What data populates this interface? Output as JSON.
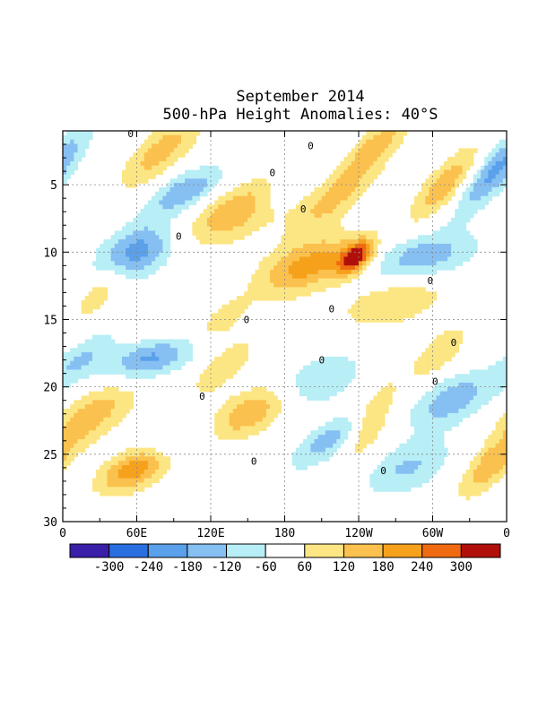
{
  "chart_data": {
    "type": "heatmap",
    "title": "September 2014",
    "subtitle": "500-hPa Height Anomalies: 40°S",
    "x_tick_labels": [
      "0",
      "60E",
      "120E",
      "180",
      "120W",
      "60W",
      "0"
    ],
    "x_tick_positions_deg_east": [
      0,
      60,
      120,
      180,
      240,
      300,
      360
    ],
    "xlim_deg_east": [
      0,
      360
    ],
    "y_tick_labels": [
      "5",
      "10",
      "15",
      "20",
      "25",
      "30"
    ],
    "y_tick_values": [
      5,
      10,
      15,
      20,
      25,
      30
    ],
    "ylim": [
      1,
      30
    ],
    "y_reversed": true,
    "grid": "dotted",
    "contour_label": "0",
    "colorbar": {
      "placement": "bottom",
      "labels": [
        "-300",
        "-240",
        "-180",
        "-120",
        "-60",
        "60",
        "120",
        "180",
        "240",
        "300"
      ],
      "colors": [
        "#3a1fa8",
        "#2a6fe0",
        "#5aa0ea",
        "#86bff2",
        "#b8eef6",
        "#ffffff",
        "#fce684",
        "#fbc14e",
        "#f6a11c",
        "#f06a12",
        "#b00f0a"
      ]
    },
    "anomaly_features": [
      {
        "lon": 80,
        "day": 2.5,
        "value": 150,
        "spread_lon": 16,
        "spread_day": 2.0,
        "tilt": 9.0
      },
      {
        "lon": 140,
        "day": 7.0,
        "value": 170,
        "spread_lon": 25,
        "spread_day": 1.8,
        "tilt": 10.0
      },
      {
        "lon": 200,
        "day": 11.0,
        "value": 210,
        "spread_lon": 25,
        "spread_day": 1.6,
        "tilt": 10.5
      },
      {
        "lon": 238,
        "day": 10.4,
        "value": 320,
        "spread_lon": 9,
        "spread_day": 0.9,
        "tilt": 6.0
      },
      {
        "lon": 220,
        "day": 6.0,
        "value": 140,
        "spread_lon": 16,
        "spread_day": 2.0,
        "tilt": 10.0
      },
      {
        "lon": 255,
        "day": 2.0,
        "value": 150,
        "spread_lon": 12,
        "spread_day": 1.5,
        "tilt": 9.0
      },
      {
        "lon": 270,
        "day": 13.5,
        "value": 130,
        "spread_lon": 28,
        "spread_day": 1.5,
        "tilt": 9.0
      },
      {
        "lon": 160,
        "day": 21.5,
        "value": 240,
        "spread_lon": 22,
        "spread_day": 1.6,
        "tilt": 11.0
      },
      {
        "lon": 130,
        "day": 18.5,
        "value": 120,
        "spread_lon": 12,
        "spread_day": 1.5,
        "tilt": 9.0
      },
      {
        "lon": 60,
        "day": 26.0,
        "value": 240,
        "spread_lon": 18,
        "spread_day": 1.3,
        "tilt": 9.0
      },
      {
        "lon": 25,
        "day": 22.0,
        "value": 150,
        "spread_lon": 20,
        "spread_day": 1.8,
        "tilt": 9.0
      },
      {
        "lon": 250,
        "day": 22.5,
        "value": 150,
        "spread_lon": 10,
        "spread_day": 2.0,
        "tilt": 5.0
      },
      {
        "lon": 305,
        "day": 17.5,
        "value": 120,
        "spread_lon": 12,
        "spread_day": 1.5,
        "tilt": 8.0
      },
      {
        "lon": 345,
        "day": 26.0,
        "value": 160,
        "spread_lon": 12,
        "spread_day": 1.6,
        "tilt": 8.0
      },
      {
        "lon": 310,
        "day": 5.0,
        "value": 170,
        "spread_lon": 12,
        "spread_day": 2.0,
        "tilt": 8.0
      },
      {
        "lon": 30,
        "day": 13.0,
        "value": 110,
        "spread_lon": 10,
        "spread_day": 1.5,
        "tilt": 8.0
      },
      {
        "lon": 130,
        "day": 15.0,
        "value": 110,
        "spread_lon": 10,
        "spread_day": 1.0,
        "tilt": 8.0
      },
      {
        "lon": 60,
        "day": 10.0,
        "value": -220,
        "spread_lon": 20,
        "spread_day": 1.5,
        "tilt": 6.0
      },
      {
        "lon": 100,
        "day": 5.5,
        "value": -180,
        "spread_lon": 18,
        "spread_day": 1.3,
        "tilt": 10.0
      },
      {
        "lon": 70,
        "day": 18.0,
        "value": -200,
        "spread_lon": 22,
        "spread_day": 1.1,
        "tilt": 10.0
      },
      {
        "lon": 195,
        "day": 20.0,
        "value": -190,
        "spread_lon": 24,
        "spread_day": 1.6,
        "tilt": 11.0
      },
      {
        "lon": 215,
        "day": 24.0,
        "value": -150,
        "spread_lon": 15,
        "spread_day": 1.5,
        "tilt": 11.0
      },
      {
        "lon": 290,
        "day": 10.5,
        "value": -170,
        "spread_lon": 30,
        "spread_day": 1.4,
        "tilt": 9.0
      },
      {
        "lon": 350,
        "day": 4.0,
        "value": -200,
        "spread_lon": 12,
        "spread_day": 2.2,
        "tilt": 8.0
      },
      {
        "lon": 315,
        "day": 21.0,
        "value": -160,
        "spread_lon": 20,
        "spread_day": 1.5,
        "tilt": 8.0
      },
      {
        "lon": 280,
        "day": 26.0,
        "value": -130,
        "spread_lon": 22,
        "spread_day": 1.5,
        "tilt": 8.0
      },
      {
        "lon": 90,
        "day": 24.0,
        "value": -110,
        "spread_lon": 18,
        "spread_day": 1.3,
        "tilt": 9.0
      },
      {
        "lon": 185,
        "day": 5.0,
        "value": -90,
        "spread_lon": 12,
        "spread_day": 1.3,
        "tilt": 10.0
      },
      {
        "lon": 15,
        "day": 18.0,
        "value": -120,
        "spread_lon": 14,
        "spread_day": 1.5,
        "tilt": 9.0
      }
    ],
    "zero_contour_labels": [
      {
        "lon": 55,
        "day": 1.2
      },
      {
        "lon": 170,
        "day": 4.1
      },
      {
        "lon": 201,
        "day": 2.1
      },
      {
        "lon": 195,
        "day": 6.8
      },
      {
        "lon": 94,
        "day": 8.8
      },
      {
        "lon": 298,
        "day": 12.1
      },
      {
        "lon": 218,
        "day": 14.2
      },
      {
        "lon": 149,
        "day": 15.0
      },
      {
        "lon": 210,
        "day": 18.0
      },
      {
        "lon": 317,
        "day": 16.7
      },
      {
        "lon": 302,
        "day": 19.6
      },
      {
        "lon": 113,
        "day": 20.7
      },
      {
        "lon": 155,
        "day": 25.5
      },
      {
        "lon": 260,
        "day": 26.2
      }
    ]
  }
}
